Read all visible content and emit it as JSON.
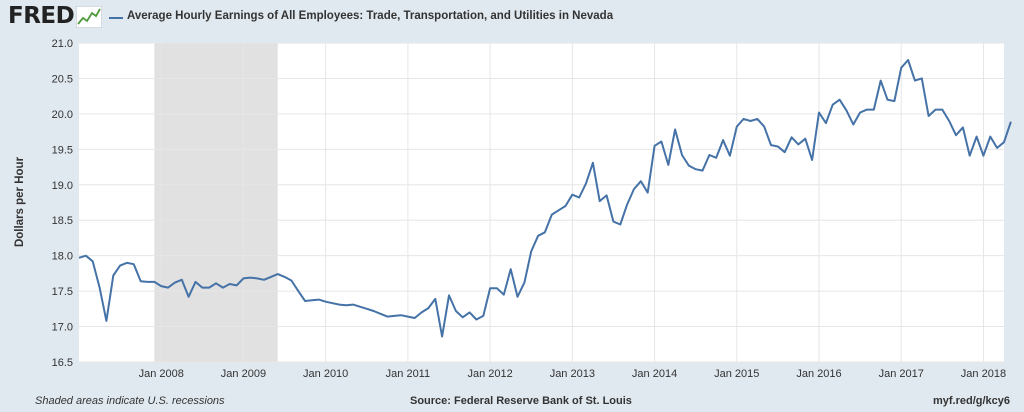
{
  "header": {
    "logo_text": "FRED",
    "logo_icon": "fred-line-graph-icon",
    "title": "Average Hourly Earnings of All Employees: Trade, Transportation, and Utilities in Nevada"
  },
  "footer": {
    "note": "Shaded areas indicate U.S. recessions",
    "source": "Source: Federal Reserve Bank of St. Louis",
    "link": "myf.red/g/kcy6"
  },
  "colors": {
    "series": "#4572a7",
    "recession": "#e1e1e1",
    "background": "#e1e9f0",
    "grid": "#e6e6e6"
  },
  "chart_data": {
    "type": "line",
    "title": "Average Hourly Earnings of All Employees: Trade, Transportation, and Utilities in Nevada",
    "ylabel": "Dollars per Hour",
    "xlabel": "",
    "ylim": [
      16.5,
      21.0
    ],
    "yticks": [
      "16.5",
      "17.0",
      "17.5",
      "18.0",
      "18.5",
      "19.0",
      "19.5",
      "20.0",
      "20.5",
      "21.0"
    ],
    "xlim": [
      "2007-01",
      "2018-04"
    ],
    "xticks": [
      {
        "label": "Jan 2008",
        "date": "2008-01"
      },
      {
        "label": "Jan 2009",
        "date": "2009-01"
      },
      {
        "label": "Jan 2010",
        "date": "2010-01"
      },
      {
        "label": "Jan 2011",
        "date": "2011-01"
      },
      {
        "label": "Jan 2012",
        "date": "2012-01"
      },
      {
        "label": "Jan 2013",
        "date": "2013-01"
      },
      {
        "label": "Jan 2014",
        "date": "2014-01"
      },
      {
        "label": "Jan 2015",
        "date": "2015-01"
      },
      {
        "label": "Jan 2016",
        "date": "2016-01"
      },
      {
        "label": "Jan 2017",
        "date": "2017-01"
      },
      {
        "label": "Jan 2018",
        "date": "2018-01"
      }
    ],
    "grid": true,
    "recessions": [
      {
        "start": "2007-12",
        "end": "2009-06"
      }
    ],
    "series": [
      {
        "name": "Average Hourly Earnings of All Employees: Trade, Transportation, and Utilities in Nevada",
        "start": "2007-01",
        "values": [
          17.97,
          18.0,
          17.92,
          17.55,
          17.08,
          17.72,
          17.86,
          17.9,
          17.88,
          17.64,
          17.63,
          17.63,
          17.57,
          17.55,
          17.62,
          17.66,
          17.42,
          17.63,
          17.55,
          17.55,
          17.61,
          17.55,
          17.6,
          17.58,
          17.68,
          17.69,
          17.68,
          17.66,
          17.7,
          17.74,
          17.7,
          17.65,
          17.5,
          17.36,
          17.37,
          17.38,
          17.35,
          17.33,
          17.31,
          17.3,
          17.31,
          17.28,
          17.25,
          17.22,
          17.18,
          17.14,
          17.15,
          17.16,
          17.14,
          17.12,
          17.2,
          17.26,
          17.39,
          16.86,
          17.44,
          17.22,
          17.13,
          17.2,
          17.1,
          17.15,
          17.54,
          17.54,
          17.45,
          17.81,
          17.42,
          17.62,
          18.06,
          18.28,
          18.33,
          18.58,
          18.64,
          18.7,
          18.86,
          18.82,
          19.02,
          19.31,
          18.77,
          18.85,
          18.48,
          18.44,
          18.72,
          18.94,
          19.05,
          18.89,
          19.55,
          19.61,
          19.28,
          19.78,
          19.42,
          19.27,
          19.22,
          19.2,
          19.42,
          19.38,
          19.63,
          19.41,
          19.82,
          19.93,
          19.9,
          19.93,
          19.82,
          19.56,
          19.54,
          19.46,
          19.67,
          19.57,
          19.65,
          19.35,
          20.02,
          19.87,
          20.13,
          20.2,
          20.05,
          19.85,
          20.02,
          20.06,
          20.06,
          20.47,
          20.2,
          20.18,
          20.65,
          20.76,
          20.47,
          20.5,
          19.97,
          20.06,
          20.06,
          19.9,
          19.7,
          19.81,
          19.41,
          19.68,
          19.41,
          19.68,
          19.52,
          19.6,
          19.89
        ]
      }
    ]
  }
}
